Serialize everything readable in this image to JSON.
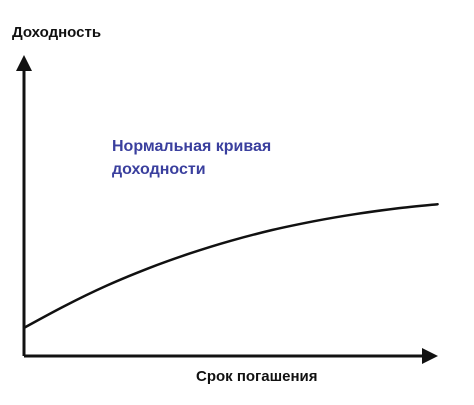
{
  "chart_data": {
    "type": "line",
    "xlabel": "Срок погашения",
    "ylabel": "Доходность",
    "annotations": [
      {
        "lines": [
          "Нормальная кривая",
          "доходности"
        ]
      }
    ],
    "series": [
      {
        "x": [
          0,
          1,
          2,
          3,
          4,
          5,
          6,
          7,
          8,
          9,
          10
        ],
        "y": [
          11,
          19.7,
          27.5,
          34.2,
          40.0,
          45.0,
          49.2,
          52.6,
          55.4,
          57.6,
          59.3
        ]
      }
    ],
    "xlim": [
      0,
      10.3
    ],
    "ylim": [
      0,
      100
    ],
    "grid": false,
    "legend": "none",
    "colors": {
      "axis": "#111111",
      "line": "#111111",
      "annotation": "#3a3f9e"
    }
  }
}
